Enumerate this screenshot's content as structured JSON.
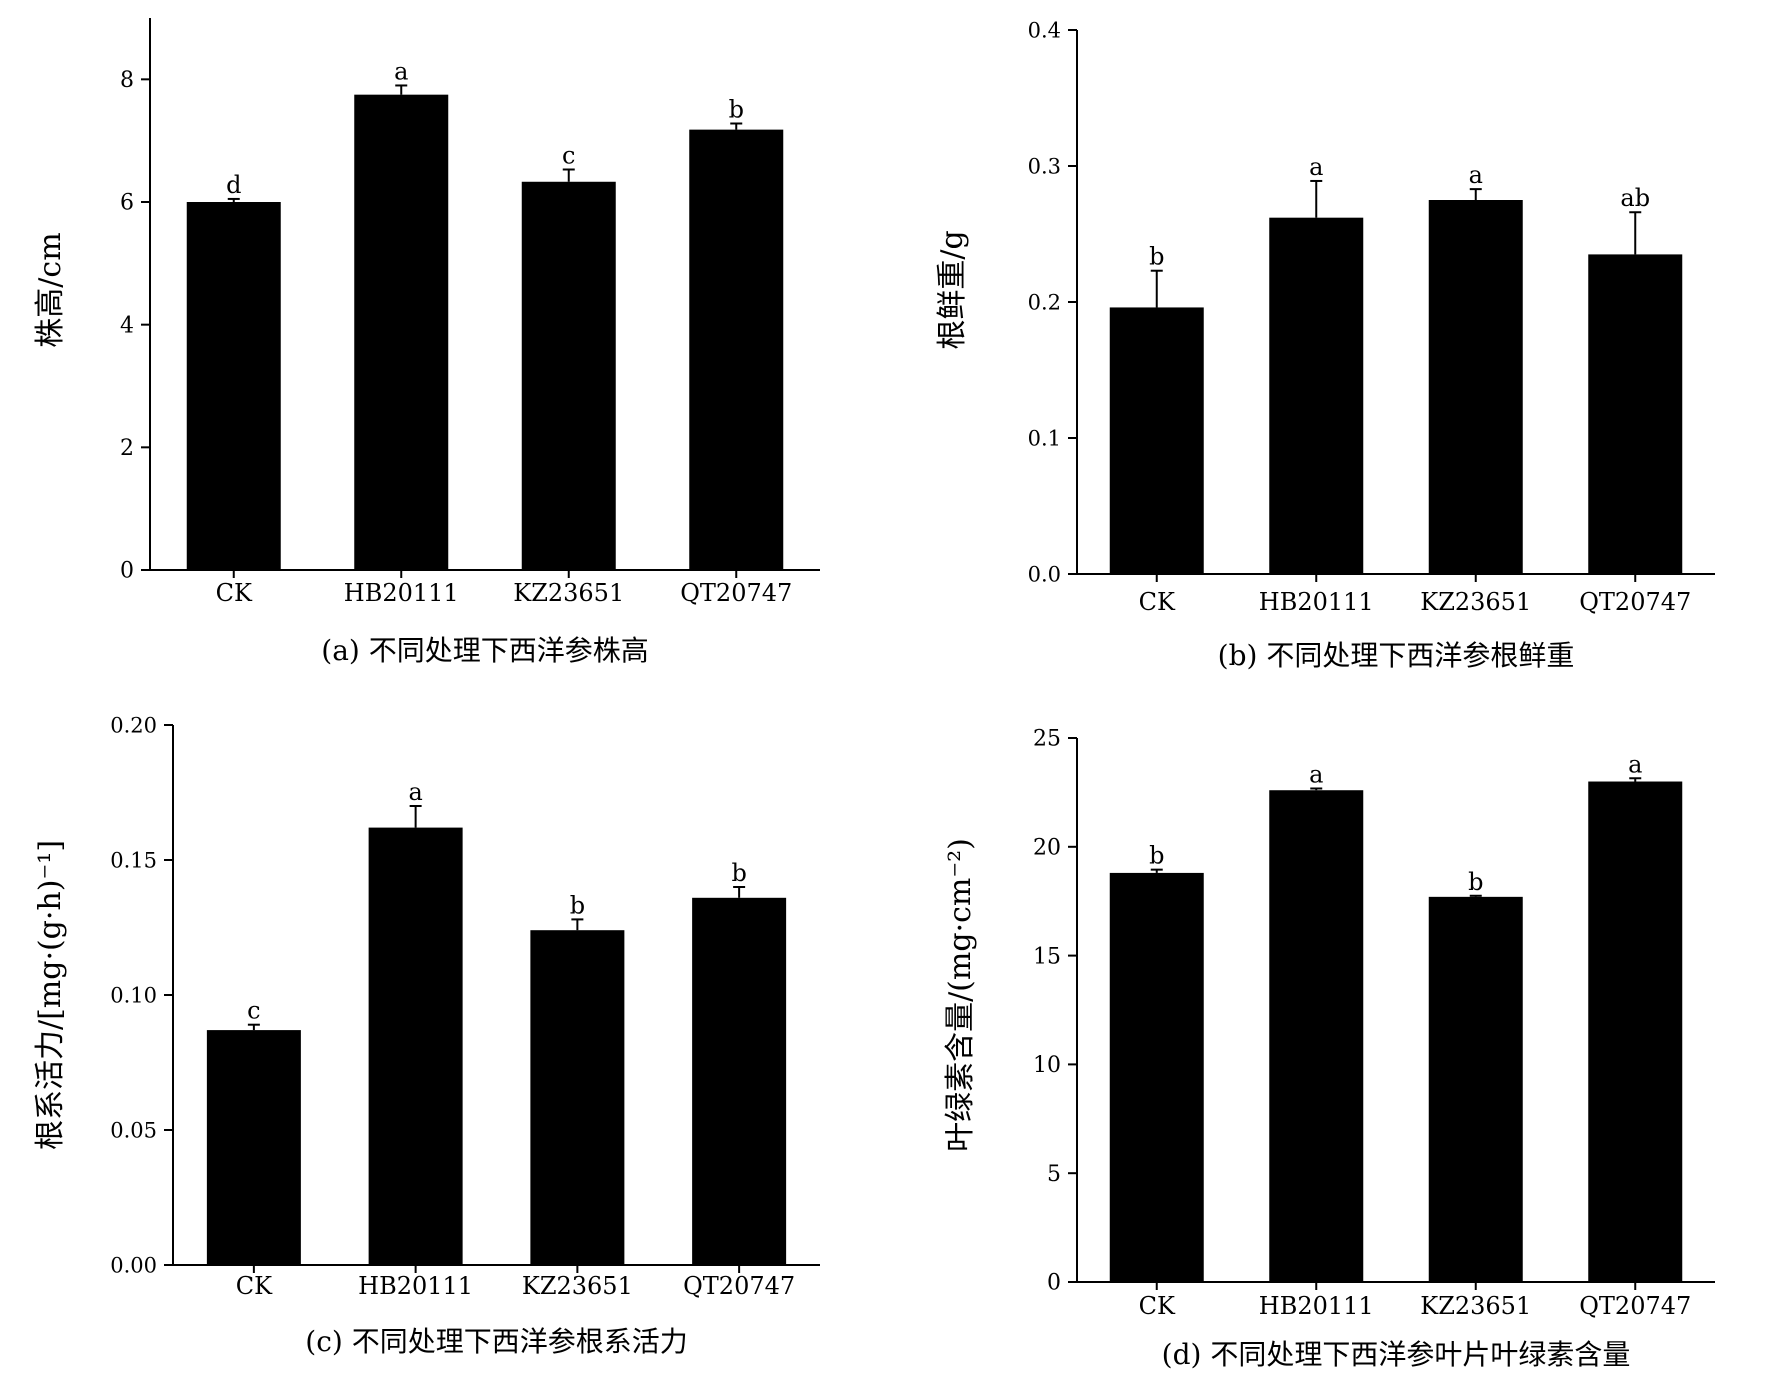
{
  "chart_data": [
    {
      "type": "bar",
      "caption": "(a) 不同处理下西洋参株高",
      "ylabel": "株高/cm",
      "xlabel": "",
      "categories": [
        "CK",
        "HB20111",
        "KZ23651",
        "QT20747"
      ],
      "values": [
        6.0,
        7.75,
        6.33,
        7.18
      ],
      "errors": [
        0.05,
        0.15,
        0.2,
        0.1
      ],
      "letters": [
        "d",
        "a",
        "c",
        "b"
      ],
      "ylim": [
        0,
        9
      ],
      "yticks": [
        "0",
        "2",
        "4",
        "6",
        "8"
      ],
      "ytick_values": [
        0,
        2,
        4,
        6,
        8
      ],
      "grid": false,
      "bar_color": "#000000"
    },
    {
      "type": "bar",
      "caption": "(b) 不同处理下西洋参根鲜重",
      "ylabel": "根鲜重/g",
      "xlabel": "",
      "categories": [
        "CK",
        "HB20111",
        "KZ23651",
        "QT20747"
      ],
      "values": [
        0.196,
        0.262,
        0.275,
        0.235
      ],
      "errors": [
        0.027,
        0.027,
        0.008,
        0.031
      ],
      "letters": [
        "b",
        "a",
        "a",
        "ab"
      ],
      "ylim": [
        0,
        0.4
      ],
      "yticks": [
        "0.0",
        "0.1",
        "0.2",
        "0.3",
        "0.4"
      ],
      "ytick_values": [
        0,
        0.1,
        0.2,
        0.3,
        0.4
      ],
      "grid": false,
      "bar_color": "#000000"
    },
    {
      "type": "bar",
      "caption": "(c) 不同处理下西洋参根系活力",
      "ylabel": "根系活力/[mg·(g·h)⁻¹]",
      "xlabel": "",
      "categories": [
        "CK",
        "HB20111",
        "KZ23651",
        "QT20747"
      ],
      "values": [
        0.087,
        0.162,
        0.124,
        0.136
      ],
      "errors": [
        0.002,
        0.008,
        0.004,
        0.004
      ],
      "letters": [
        "c",
        "a",
        "b",
        "b"
      ],
      "ylim": [
        0,
        0.2
      ],
      "yticks": [
        "0.00",
        "0.05",
        "0.10",
        "0.15",
        "0.20"
      ],
      "ytick_values": [
        0,
        0.05,
        0.1,
        0.15,
        0.2
      ],
      "grid": false,
      "bar_color": "#000000"
    },
    {
      "type": "bar",
      "caption": "(d) 不同处理下西洋参叶片叶绿素含量",
      "ylabel": "叶绿素含量/(mg·cm⁻²)",
      "xlabel": "",
      "categories": [
        "CK",
        "HB20111",
        "KZ23651",
        "QT20747"
      ],
      "values": [
        18.8,
        22.6,
        17.7,
        23.0
      ],
      "errors": [
        0.15,
        0.08,
        0.05,
        0.15
      ],
      "letters": [
        "b",
        "a",
        "b",
        "a"
      ],
      "ylim": [
        0,
        25
      ],
      "yticks": [
        "0",
        "5",
        "10",
        "15",
        "20",
        "25"
      ],
      "ytick_values": [
        0,
        5,
        10,
        15,
        20,
        25
      ],
      "grid": false,
      "bar_color": "#000000"
    }
  ]
}
